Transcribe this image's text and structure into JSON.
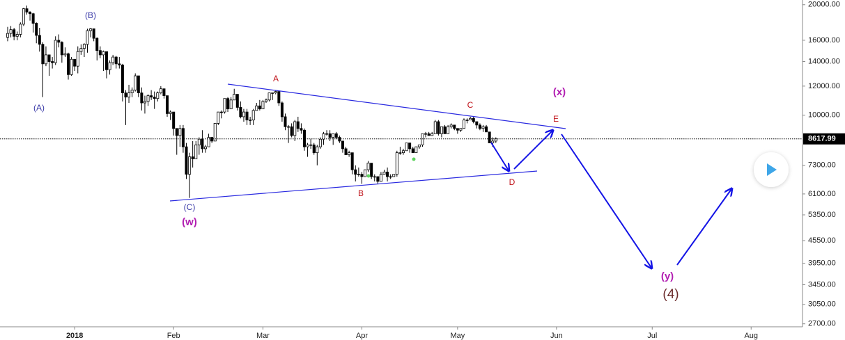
{
  "chart_data": {
    "type": "candlestick",
    "log_scale": true,
    "up_color": "#ffffff",
    "down_color": "#000000",
    "annotations": [
      "(A)",
      "(B)",
      "(C)",
      "(w)",
      "A",
      "B",
      "C",
      "D",
      "E",
      "(x)",
      "(y)",
      "(4)"
    ],
    "last_price": 8617.99,
    "xlim": [
      -23.4,
      228.1
    ],
    "ylim": [
      2650,
      20600
    ],
    "xticks": [
      {
        "value": 0,
        "label": "2018"
      },
      {
        "value": 31,
        "label": "Feb"
      },
      {
        "value": 59,
        "label": "Mar"
      },
      {
        "value": 90,
        "label": "Apr"
      },
      {
        "value": 120,
        "label": "May"
      },
      {
        "value": 151,
        "label": "Jun"
      },
      {
        "value": 181,
        "label": "Jul"
      },
      {
        "value": 212,
        "label": "Aug"
      }
    ],
    "yticks": [
      {
        "value": 20000,
        "label": "20000.00"
      },
      {
        "value": 16000,
        "label": "16000.00"
      },
      {
        "value": 14000,
        "label": "14000.00"
      },
      {
        "value": 12000,
        "label": "12000.00"
      },
      {
        "value": 10000,
        "label": "10000.00"
      },
      {
        "value": 7300,
        "label": "7300.00"
      },
      {
        "value": 6100,
        "label": "6100.00"
      },
      {
        "value": 5350,
        "label": "5350.00"
      },
      {
        "value": 4550,
        "label": "4550.00"
      },
      {
        "value": 3950,
        "label": "3950.00"
      },
      {
        "value": 3450,
        "label": "3450.00"
      },
      {
        "value": 3050,
        "label": "3050.00"
      },
      {
        "value": 2700,
        "label": "2700.00"
      }
    ],
    "x": [
      -21,
      -20,
      -19,
      -18,
      -17,
      -16,
      -15,
      -14,
      -13,
      -12,
      -11,
      -10,
      -9,
      -8,
      -7,
      -6,
      -5,
      -4,
      -3,
      -2,
      -1,
      0,
      1,
      2,
      3,
      4,
      5,
      6,
      7,
      8,
      9,
      10,
      11,
      12,
      13,
      14,
      15,
      16,
      17,
      18,
      19,
      20,
      21,
      22,
      23,
      24,
      25,
      26,
      27,
      28,
      29,
      30,
      31,
      32,
      33,
      34,
      35,
      36,
      37,
      38,
      39,
      40,
      41,
      42,
      43,
      44,
      45,
      46,
      47,
      48,
      49,
      50,
      51,
      52,
      53,
      54,
      55,
      56,
      57,
      58,
      59,
      60,
      61,
      62,
      63,
      64,
      65,
      66,
      67,
      68,
      69,
      70,
      71,
      72,
      73,
      74,
      75,
      76,
      77,
      78,
      79,
      80,
      81,
      82,
      83,
      84,
      85,
      86,
      87,
      88,
      89,
      90,
      91,
      92,
      93,
      94,
      95,
      96,
      97,
      98,
      99,
      100,
      101,
      102,
      103,
      104,
      105,
      106,
      107,
      108,
      109,
      110,
      111,
      112,
      113,
      114,
      115,
      116,
      117,
      118,
      119,
      120,
      121,
      122,
      123,
      124,
      125,
      126,
      127,
      128,
      129,
      130,
      131,
      132
    ],
    "candles": [
      [
        16300,
        17400,
        15900,
        16700
      ],
      [
        16700,
        17500,
        16300,
        17100
      ],
      [
        17100,
        17300,
        16000,
        16400
      ],
      [
        16400,
        16900,
        16000,
        16600
      ],
      [
        16600,
        17900,
        16300,
        17700
      ],
      [
        17700,
        19600,
        17500,
        19500
      ],
      [
        19500,
        19900,
        18800,
        19100
      ],
      [
        19100,
        19200,
        18100,
        18900
      ],
      [
        18900,
        19000,
        16800,
        17800
      ],
      [
        17800,
        17900,
        15700,
        16500
      ],
      [
        16500,
        17300,
        14900,
        15600
      ],
      [
        15600,
        15800,
        11200,
        13800
      ],
      [
        13800,
        15400,
        13600,
        14600
      ],
      [
        14600,
        14600,
        12800,
        14000
      ],
      [
        14000,
        14400,
        13400,
        13900
      ],
      [
        13900,
        16400,
        13700,
        16000
      ],
      [
        16000,
        16600,
        15300,
        15800
      ],
      [
        15800,
        15900,
        13900,
        14600
      ],
      [
        14600,
        15300,
        14400,
        14700
      ],
      [
        14700,
        14800,
        12500,
        12900
      ],
      [
        12900,
        14400,
        12800,
        14200
      ],
      [
        14200,
        14200,
        13200,
        13600
      ],
      [
        13600,
        15400,
        13000,
        14900
      ],
      [
        14900,
        15600,
        14600,
        15200
      ],
      [
        15200,
        15700,
        14400,
        15600
      ],
      [
        15600,
        17200,
        14800,
        17000
      ],
      [
        17000,
        17300,
        16300,
        17200
      ],
      [
        17200,
        17200,
        15900,
        16200
      ],
      [
        16200,
        16300,
        14100,
        15000
      ],
      [
        15000,
        15400,
        14300,
        14600
      ],
      [
        14600,
        15000,
        13200,
        14900
      ],
      [
        14900,
        14900,
        12600,
        13300
      ],
      [
        13300,
        14100,
        12900,
        13900
      ],
      [
        13900,
        14600,
        13700,
        14400
      ],
      [
        14400,
        14500,
        13400,
        13800
      ],
      [
        13800,
        14400,
        13400,
        13700
      ],
      [
        13700,
        13800,
        10900,
        11500
      ],
      [
        11500,
        11700,
        9400,
        11200
      ],
      [
        11200,
        12100,
        10800,
        11500
      ],
      [
        11500,
        11900,
        11200,
        11700
      ],
      [
        11700,
        13000,
        11600,
        12800
      ],
      [
        12800,
        12800,
        11200,
        11500
      ],
      [
        11500,
        11900,
        10300,
        10800
      ],
      [
        10800,
        11300,
        10100,
        10900
      ],
      [
        10900,
        11400,
        10600,
        11300
      ],
      [
        11300,
        11700,
        11000,
        11200
      ],
      [
        11200,
        11600,
        10400,
        11100
      ],
      [
        11100,
        11600,
        10900,
        11500
      ],
      [
        11500,
        12000,
        11400,
        11800
      ],
      [
        11800,
        11800,
        11100,
        11300
      ],
      [
        11300,
        11300,
        9900,
        10100
      ],
      [
        10100,
        10300,
        9700,
        10200
      ],
      [
        10200,
        10200,
        8800,
        9200
      ],
      [
        9200,
        9200,
        7800,
        8800
      ],
      [
        8800,
        9400,
        8200,
        9200
      ],
      [
        9200,
        9400,
        7900,
        8200
      ],
      [
        8200,
        8400,
        6700,
        6900
      ],
      [
        6900,
        7900,
        5950,
        7700
      ],
      [
        7700,
        8500,
        7200,
        7600
      ],
      [
        7600,
        8500,
        7600,
        8300
      ],
      [
        8300,
        8700,
        7800,
        8600
      ],
      [
        8600,
        9100,
        7900,
        8100
      ],
      [
        8100,
        8300,
        7900,
        8200
      ],
      [
        8200,
        8900,
        8200,
        8700
      ],
      [
        8700,
        8700,
        8400,
        8500
      ],
      [
        8500,
        9500,
        8500,
        9500
      ],
      [
        9500,
        10200,
        9400,
        10200
      ],
      [
        10200,
        10300,
        9800,
        10200
      ],
      [
        10200,
        11100,
        10100,
        11100
      ],
      [
        11100,
        11200,
        10200,
        10400
      ],
      [
        10400,
        11200,
        10400,
        11000
      ],
      [
        11000,
        11800,
        11000,
        11400
      ],
      [
        11400,
        11400,
        10300,
        10500
      ],
      [
        10500,
        10900,
        9800,
        9900
      ],
      [
        9900,
        10400,
        9600,
        10200
      ],
      [
        10200,
        10400,
        9400,
        9700
      ],
      [
        9700,
        9900,
        9400,
        9700
      ],
      [
        9700,
        10400,
        9400,
        10300
      ],
      [
        10300,
        10800,
        10300,
        10600
      ],
      [
        10600,
        11000,
        10300,
        10400
      ],
      [
        10400,
        11000,
        10400,
        10900
      ],
      [
        10900,
        11100,
        10800,
        11000
      ],
      [
        11000,
        11500,
        10900,
        11500
      ],
      [
        11500,
        11500,
        11000,
        11500
      ],
      [
        11500,
        11700,
        11400,
        11600
      ],
      [
        11600,
        11600,
        10600,
        10800
      ],
      [
        10800,
        10900,
        9600,
        9900
      ],
      [
        9900,
        10100,
        9100,
        9300
      ],
      [
        9300,
        9400,
        8400,
        9300
      ],
      [
        9300,
        9500,
        8700,
        8800
      ],
      [
        8800,
        9700,
        8500,
        9600
      ],
      [
        9600,
        9900,
        9000,
        9200
      ],
      [
        9200,
        9500,
        8900,
        9100
      ],
      [
        9100,
        9200,
        8000,
        8200
      ],
      [
        8200,
        8400,
        7700,
        8300
      ],
      [
        8300,
        8600,
        8100,
        8300
      ],
      [
        8300,
        8400,
        7800,
        7900
      ],
      [
        7900,
        8300,
        7300,
        8200
      ],
      [
        8200,
        8700,
        8100,
        8600
      ],
      [
        8600,
        9000,
        8300,
        8900
      ],
      [
        8900,
        9100,
        8800,
        8900
      ],
      [
        8900,
        9100,
        8500,
        8700
      ],
      [
        8700,
        8900,
        8300,
        8900
      ],
      [
        8900,
        9000,
        8600,
        8700
      ],
      [
        8700,
        8800,
        8400,
        8500
      ],
      [
        8500,
        8500,
        7900,
        8100
      ],
      [
        8100,
        8200,
        7800,
        7800
      ],
      [
        7800,
        8000,
        7700,
        7900
      ],
      [
        7900,
        7900,
        6900,
        7100
      ],
      [
        7100,
        7300,
        6600,
        6900
      ],
      [
        6900,
        7200,
        6800,
        6900
      ],
      [
        6900,
        7000,
        6500,
        6800
      ],
      [
        6800,
        7100,
        6800,
        7100
      ],
      [
        7100,
        7500,
        7000,
        7400
      ],
      [
        7400,
        7400,
        6700,
        6800
      ],
      [
        6800,
        6900,
        6600,
        6800
      ],
      [
        6800,
        6800,
        6500,
        6600
      ],
      [
        6600,
        7000,
        6600,
        6900
      ],
      [
        6900,
        7100,
        6900,
        7000
      ],
      [
        7000,
        7200,
        6600,
        6800
      ],
      [
        6800,
        6900,
        6700,
        6800
      ],
      [
        6800,
        6900,
        6800,
        6900
      ],
      [
        6900,
        8000,
        6800,
        7900
      ],
      [
        7900,
        8200,
        7800,
        7900
      ],
      [
        7900,
        8100,
        7800,
        8000
      ],
      [
        8000,
        8400,
        8000,
        8400
      ],
      [
        8400,
        8400,
        7900,
        8100
      ],
      [
        8100,
        8200,
        7900,
        7900
      ],
      [
        7900,
        8200,
        7900,
        8200
      ],
      [
        8200,
        8300,
        8100,
        8300
      ],
      [
        8300,
        8900,
        8200,
        8900
      ],
      [
        8900,
        9000,
        8700,
        8900
      ],
      [
        8900,
        9000,
        8800,
        8800
      ],
      [
        8800,
        9000,
        8800,
        8900
      ],
      [
        8900,
        9700,
        8900,
        9600
      ],
      [
        9600,
        9700,
        8800,
        8900
      ],
      [
        8900,
        9300,
        8700,
        9300
      ],
      [
        9300,
        9400,
        8900,
        8900
      ],
      [
        8900,
        9400,
        8900,
        9300
      ],
      [
        9300,
        9500,
        9200,
        9400
      ],
      [
        9400,
        9400,
        9100,
        9200
      ],
      [
        9200,
        9200,
        8900,
        9100
      ],
      [
        9100,
        9200,
        9000,
        9200
      ],
      [
        9200,
        9800,
        9200,
        9700
      ],
      [
        9700,
        9800,
        9500,
        9700
      ],
      [
        9700,
        9900,
        9700,
        9800
      ],
      [
        9800,
        9900,
        9500,
        9600
      ],
      [
        9600,
        9600,
        9200,
        9400
      ],
      [
        9400,
        9500,
        9100,
        9200
      ],
      [
        9200,
        9400,
        9000,
        9300
      ],
      [
        9300,
        9400,
        9000,
        9000
      ],
      [
        9000,
        9000,
        8400,
        8400
      ],
      [
        8400,
        8700,
        8200,
        8500
      ],
      [
        8500,
        8700,
        8400,
        8620
      ]
    ]
  }
}
